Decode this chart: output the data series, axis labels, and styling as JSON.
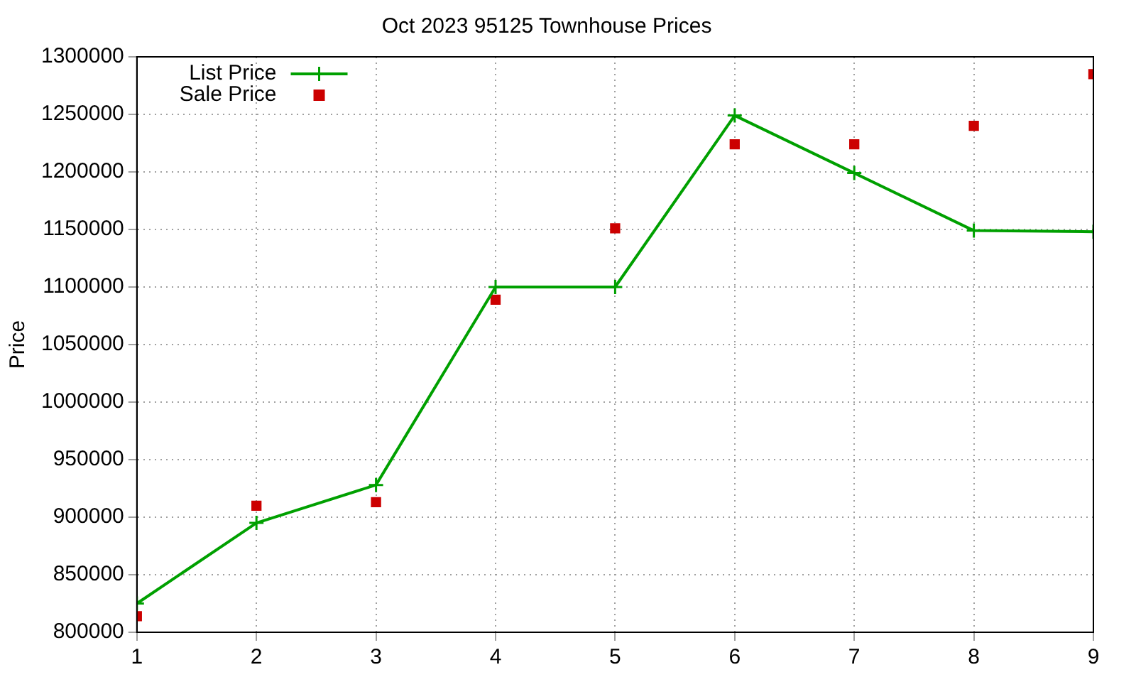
{
  "chart_data": {
    "type": "line",
    "title": "Oct 2023 95125 Townhouse Prices",
    "ylabel": "Price",
    "x": [
      1,
      2,
      3,
      4,
      5,
      6,
      7,
      8,
      9
    ],
    "series": [
      {
        "name": "List Price",
        "type": "line",
        "color": "#00a000",
        "marker": "cross",
        "line_style": "solid",
        "values": [
          825000,
          895000,
          928000,
          1100000,
          1100000,
          1249000,
          1199000,
          1149000,
          1148000
        ]
      },
      {
        "name": "Sale Price",
        "type": "scatter",
        "color": "#cc0000",
        "marker": "square",
        "values": [
          814000,
          910000,
          913000,
          1089000,
          1151000,
          1224000,
          1224000,
          1240000,
          1285000
        ]
      }
    ],
    "xlim": [
      1,
      9
    ],
    "xticks": [
      1,
      2,
      3,
      4,
      5,
      6,
      7,
      8,
      9
    ],
    "ylim": [
      800000,
      1300000
    ],
    "yticks": [
      800000,
      850000,
      900000,
      950000,
      1000000,
      1050000,
      1100000,
      1150000,
      1200000,
      1250000,
      1300000
    ],
    "grid": true,
    "legend": "top left"
  }
}
